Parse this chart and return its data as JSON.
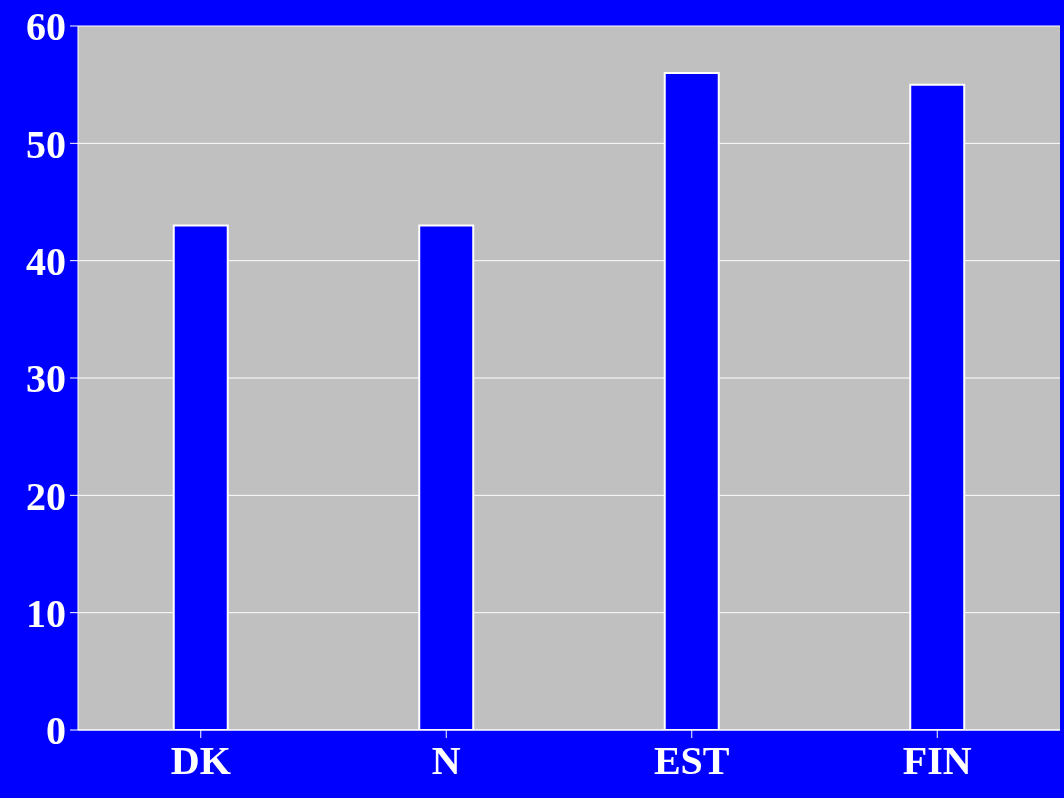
{
  "chart_data": {
    "type": "bar",
    "categories": [
      "DK",
      "N",
      "EST",
      "FIN"
    ],
    "values": [
      43,
      43,
      56,
      55
    ],
    "color": "#0000ff",
    "ylim": [
      0,
      60
    ],
    "yticks": [
      0,
      10,
      20,
      30,
      40,
      50,
      60
    ],
    "grid": "y"
  }
}
